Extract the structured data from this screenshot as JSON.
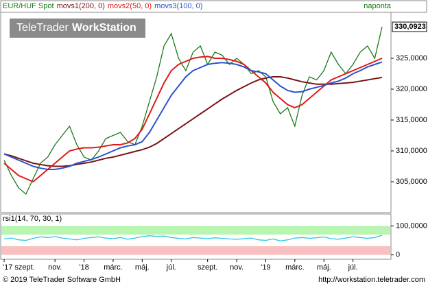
{
  "logo": {
    "brand": "TeleTrader",
    "product": "WorkStation"
  },
  "interval": "naponta",
  "footer": {
    "copyright": "© 2019 TeleTrader Software GmbH",
    "url": "http://workstation.teletrader.com"
  },
  "chart_data": [
    {
      "type": "line",
      "categories": [
        "'17 szept.",
        null,
        null,
        null,
        null,
        null,
        null,
        "nov.",
        null,
        null,
        null,
        "'18",
        null,
        null,
        null,
        "márc.",
        null,
        null,
        null,
        "máj.",
        null,
        null,
        null,
        "júl.",
        null,
        null,
        null,
        null,
        "szept.",
        null,
        null,
        null,
        "nov.",
        null,
        null,
        null,
        "'19",
        null,
        null,
        null,
        "márc.",
        null,
        null,
        null,
        "máj.",
        null,
        null,
        null,
        "júl.",
        null,
        null,
        null,
        null
      ],
      "series": [
        {
          "name": "EUR/HUF Spot",
          "color": "#187818",
          "values": [
            308.5,
            306,
            304,
            303,
            305.5,
            308,
            309,
            311,
            312.5,
            314,
            311,
            309,
            308.5,
            310,
            312,
            312.5,
            313,
            311.5,
            311,
            314,
            318,
            322,
            327,
            329,
            325,
            323,
            326,
            327,
            324,
            326,
            325.5,
            324,
            325,
            324,
            322.5,
            323,
            322,
            318,
            316,
            317,
            314,
            319,
            322,
            321.5,
            323,
            326,
            324,
            322.5,
            324,
            326,
            327,
            325,
            330.0923
          ]
        },
        {
          "name": "movs1(200, 0)",
          "color": "#7a1414",
          "values": [
            309.5,
            309.2,
            308.8,
            308.4,
            308,
            307.8,
            307.6,
            307.5,
            307.5,
            307.6,
            307.8,
            308,
            308.2,
            308.5,
            308.8,
            309,
            309.3,
            309.6,
            309.9,
            310.2,
            310.6,
            311.2,
            312,
            312.8,
            313.6,
            314.4,
            315.2,
            316,
            316.8,
            317.6,
            318.4,
            319.1,
            319.8,
            320.4,
            321,
            321.5,
            321.8,
            322,
            322,
            321.8,
            321.5,
            321.2,
            321,
            320.8,
            320.8,
            320.8,
            320.9,
            321,
            321.1,
            321.3,
            321.5,
            321.7,
            321.9
          ]
        },
        {
          "name": "movs2(50, 0)",
          "color": "#e01818",
          "values": [
            308,
            307,
            306,
            305.5,
            305,
            306,
            307,
            308,
            309,
            310,
            310.3,
            310.5,
            310.5,
            310.6,
            310.8,
            311,
            311,
            311.3,
            312,
            313.5,
            316,
            318.5,
            321,
            323,
            324,
            324.5,
            325,
            325.2,
            325.3,
            325,
            325,
            324.8,
            324.5,
            324,
            323,
            322,
            321,
            319.5,
            318.5,
            317.5,
            317,
            317.5,
            318.5,
            319.5,
            320.5,
            321.5,
            322,
            322.5,
            323,
            323.5,
            324,
            324.5,
            325
          ]
        },
        {
          "name": "movs3(100, 0)",
          "color": "#2a52d0",
          "values": [
            309.5,
            309,
            308.5,
            308,
            307.5,
            307.2,
            307,
            307,
            307.2,
            307.5,
            308,
            308.3,
            308.6,
            309,
            309.5,
            310,
            310.5,
            310.8,
            311,
            311.5,
            313,
            315,
            317,
            319,
            320.5,
            322,
            323,
            323.5,
            324,
            324.2,
            324.3,
            324.2,
            324,
            323.6,
            323,
            322.8,
            322.5,
            321.5,
            320.5,
            319.8,
            319.5,
            319.6,
            320,
            320.3,
            320.6,
            321,
            321.3,
            321.8,
            322.5,
            323,
            323.6,
            324,
            324.4
          ]
        }
      ],
      "ylim": [
        300,
        332.44
      ],
      "yticks": [
        {
          "value": 305,
          "label": "305,0000"
        },
        {
          "value": 310,
          "label": "310,0000"
        },
        {
          "value": 315,
          "label": "315,0000"
        },
        {
          "value": 320,
          "label": "320,0000"
        },
        {
          "value": 325,
          "label": "325,0000"
        }
      ],
      "current_value": {
        "value": 330.0923,
        "label": "330,0923"
      }
    },
    {
      "type": "line",
      "series": [
        {
          "name": "rsi1(14, 70, 30, 1)",
          "color": "#30c4e8",
          "values": [
            55,
            58,
            52,
            50,
            57,
            62,
            60,
            63,
            58,
            55,
            52,
            57,
            60,
            62,
            58,
            56,
            60,
            54,
            58,
            63,
            66,
            64,
            65,
            60,
            57,
            55,
            60,
            58,
            56,
            59,
            57,
            55,
            54,
            56,
            58,
            52,
            50,
            55,
            48,
            52,
            58,
            60,
            57,
            59,
            62,
            56,
            54,
            58,
            62,
            60,
            57,
            60,
            68
          ]
        }
      ],
      "ylim": [
        -15,
        141
      ],
      "yticks": [
        0,
        {
          "value": 100,
          "label": "100,0000"
        }
      ],
      "upper_band": 70,
      "lower_band": 30
    }
  ]
}
